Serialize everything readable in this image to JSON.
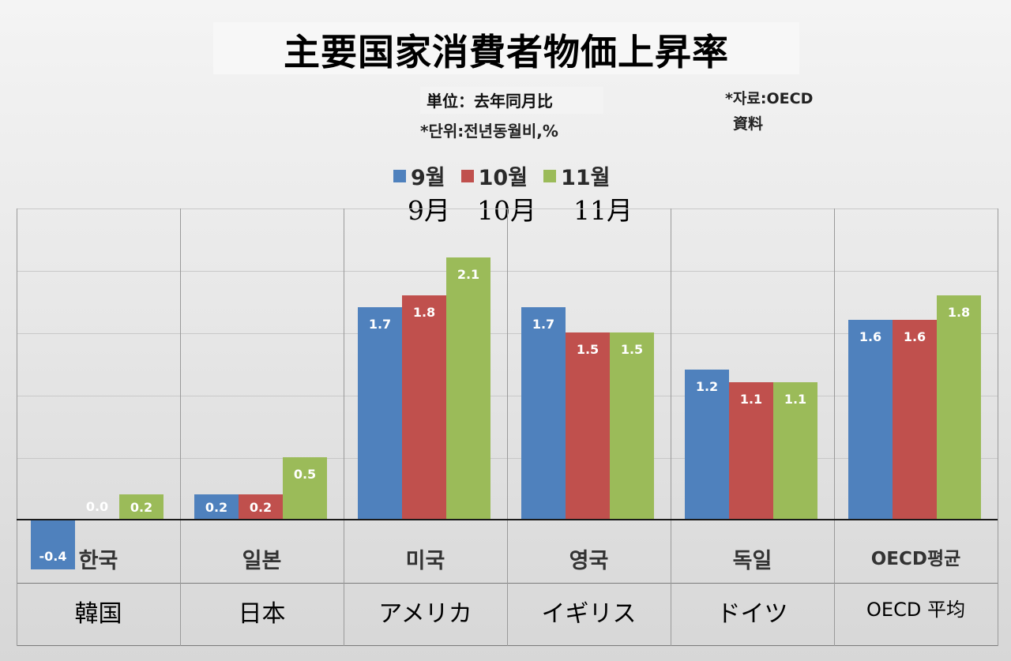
{
  "title": "主要国家消費者物価上昇率",
  "unit_jp": "単位：去年同月比",
  "unit_kr": "*단위:전년동월비,%",
  "source_kr": "*자료:OECD",
  "source_jp": "資料",
  "legend": {
    "items": [
      {
        "label_kr": "9월",
        "label_jp": "9月",
        "color": "#4f81bd"
      },
      {
        "label_kr": "10월",
        "label_jp": "10月",
        "color": "#c0504d"
      },
      {
        "label_kr": "11월",
        "label_jp": "11月",
        "color": "#9bbb59"
      }
    ]
  },
  "categories": [
    {
      "kr": "한국",
      "jp": "韓国"
    },
    {
      "kr": "일본",
      "jp": "日本"
    },
    {
      "kr": "미국",
      "jp": "アメリカ"
    },
    {
      "kr": "영국",
      "jp": "イギリス"
    },
    {
      "kr": "독일",
      "jp": "ドイツ"
    },
    {
      "kr": "OECD평균",
      "jp": "OECD 平均"
    }
  ],
  "chart_data": {
    "type": "bar",
    "title": "主要国家消費者物価上昇率",
    "subtitle": "単位：去年同月比 / *단위:전년동월비,%",
    "source": "*자료:OECD 資料",
    "categories": [
      "한국 (韓国)",
      "일본 (日本)",
      "미국 (アメリカ)",
      "영국 (イギリス)",
      "독일 (ドイツ)",
      "OECD평균 (OECD 平均)"
    ],
    "series": [
      {
        "name": "9월 (9月)",
        "color": "#4f81bd",
        "values": [
          -0.4,
          0.2,
          1.7,
          1.7,
          1.2,
          1.6
        ]
      },
      {
        "name": "10월 (10月)",
        "color": "#c0504d",
        "values": [
          0.0,
          0.2,
          1.8,
          1.5,
          1.1,
          1.6
        ]
      },
      {
        "name": "11월 (11月)",
        "color": "#9bbb59",
        "values": [
          0.2,
          0.5,
          2.1,
          1.5,
          1.1,
          1.8
        ]
      }
    ],
    "xlabel": "",
    "ylabel": "%",
    "ylim": [
      -0.5,
      2.5
    ],
    "grid": true,
    "data_labels": true,
    "legend_position": "top"
  }
}
